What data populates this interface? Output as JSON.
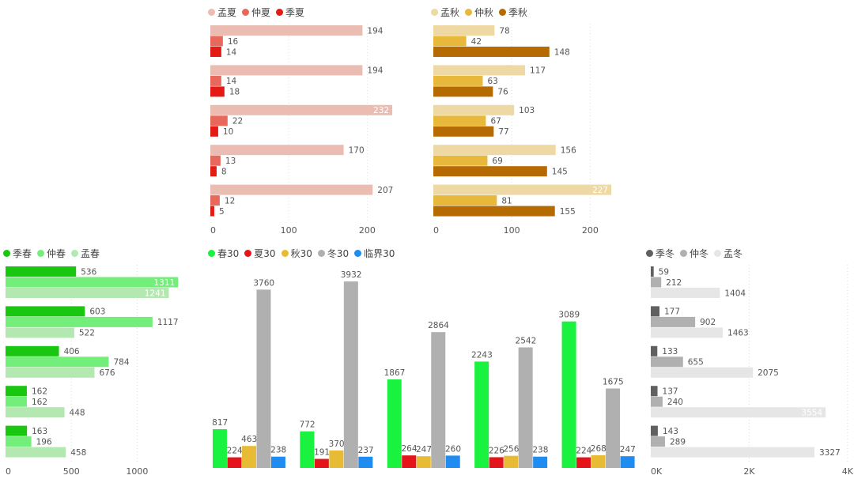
{
  "chart_data": [
    {
      "id": "summer",
      "type": "bar",
      "orientation": "horizontal",
      "series": [
        {
          "name": "孟夏",
          "color": "#ebbdb2",
          "values": [
            194,
            194,
            232,
            170,
            207
          ]
        },
        {
          "name": "仲夏",
          "color": "#e8695c",
          "values": [
            16,
            14,
            22,
            13,
            12
          ]
        },
        {
          "name": "季夏",
          "color": "#e41a14",
          "values": [
            14,
            18,
            10,
            8,
            5
          ]
        }
      ],
      "xticks": [
        "0",
        "100",
        "200"
      ],
      "tick_values": [
        0,
        100,
        200
      ],
      "xlim": [
        0,
        242
      ],
      "grid": true
    },
    {
      "id": "autumn",
      "type": "bar",
      "orientation": "horizontal",
      "series": [
        {
          "name": "孟秋",
          "color": "#eed8a3",
          "values": [
            78,
            117,
            103,
            156,
            227
          ]
        },
        {
          "name": "仲秋",
          "color": "#e8b83a",
          "values": [
            42,
            63,
            67,
            69,
            81
          ]
        },
        {
          "name": "季秋",
          "color": "#b56a02",
          "values": [
            148,
            76,
            77,
            145,
            155
          ]
        }
      ],
      "xticks": [
        "0",
        "100",
        "200"
      ],
      "tick_values": [
        0,
        100,
        200
      ],
      "xlim": [
        0,
        242
      ],
      "grid": true
    },
    {
      "id": "spring",
      "type": "bar",
      "orientation": "horizontal",
      "series": [
        {
          "name": "季春",
          "color": "#19c710",
          "values": [
            536,
            603,
            406,
            162,
            163
          ]
        },
        {
          "name": "仲春",
          "color": "#74ee7a",
          "values": [
            1311,
            1117,
            784,
            162,
            196
          ]
        },
        {
          "name": "孟春",
          "color": "#b3e8b0",
          "values": [
            1241,
            522,
            676,
            448,
            458
          ]
        }
      ],
      "xticks": [
        "0",
        "500",
        "1000"
      ],
      "tick_values": [
        0,
        500,
        1000
      ],
      "xlim": [
        0,
        1400
      ],
      "grid": true
    },
    {
      "id": "thirty",
      "type": "bar",
      "orientation": "vertical",
      "categories": [
        "",
        "",
        "",
        "",
        ""
      ],
      "series": [
        {
          "name": "春30",
          "color": "#19f23e",
          "values": [
            817,
            772,
            1867,
            2243,
            3089
          ]
        },
        {
          "name": "夏30",
          "color": "#e4141a",
          "values": [
            224,
            191,
            264,
            226,
            224
          ]
        },
        {
          "name": "秋30",
          "color": "#e8bb34",
          "values": [
            463,
            370,
            247,
            256,
            268
          ]
        },
        {
          "name": "冬30",
          "color": "#b0b0b0",
          "values": [
            3760,
            3932,
            2864,
            2542,
            1675
          ]
        },
        {
          "name": "临界30",
          "color": "#1e8cf0",
          "values": [
            238,
            237,
            260,
            238,
            247
          ]
        }
      ],
      "ylim": [
        0,
        4350
      ],
      "grid": false
    },
    {
      "id": "winter",
      "type": "bar",
      "orientation": "horizontal",
      "series": [
        {
          "name": "季冬",
          "color": "#606060",
          "values": [
            59,
            177,
            133,
            137,
            143
          ]
        },
        {
          "name": "仲冬",
          "color": "#b0b0b0",
          "values": [
            212,
            902,
            655,
            240,
            289
          ]
        },
        {
          "name": "孟冬",
          "color": "#e6e6e6",
          "values": [
            1404,
            1463,
            2075,
            3554,
            3327
          ]
        }
      ],
      "xticks": [
        "0K",
        "2K",
        "4K"
      ],
      "tick_values": [
        0,
        2000,
        4000
      ],
      "xlim": [
        0,
        4050
      ],
      "grid": true
    }
  ]
}
